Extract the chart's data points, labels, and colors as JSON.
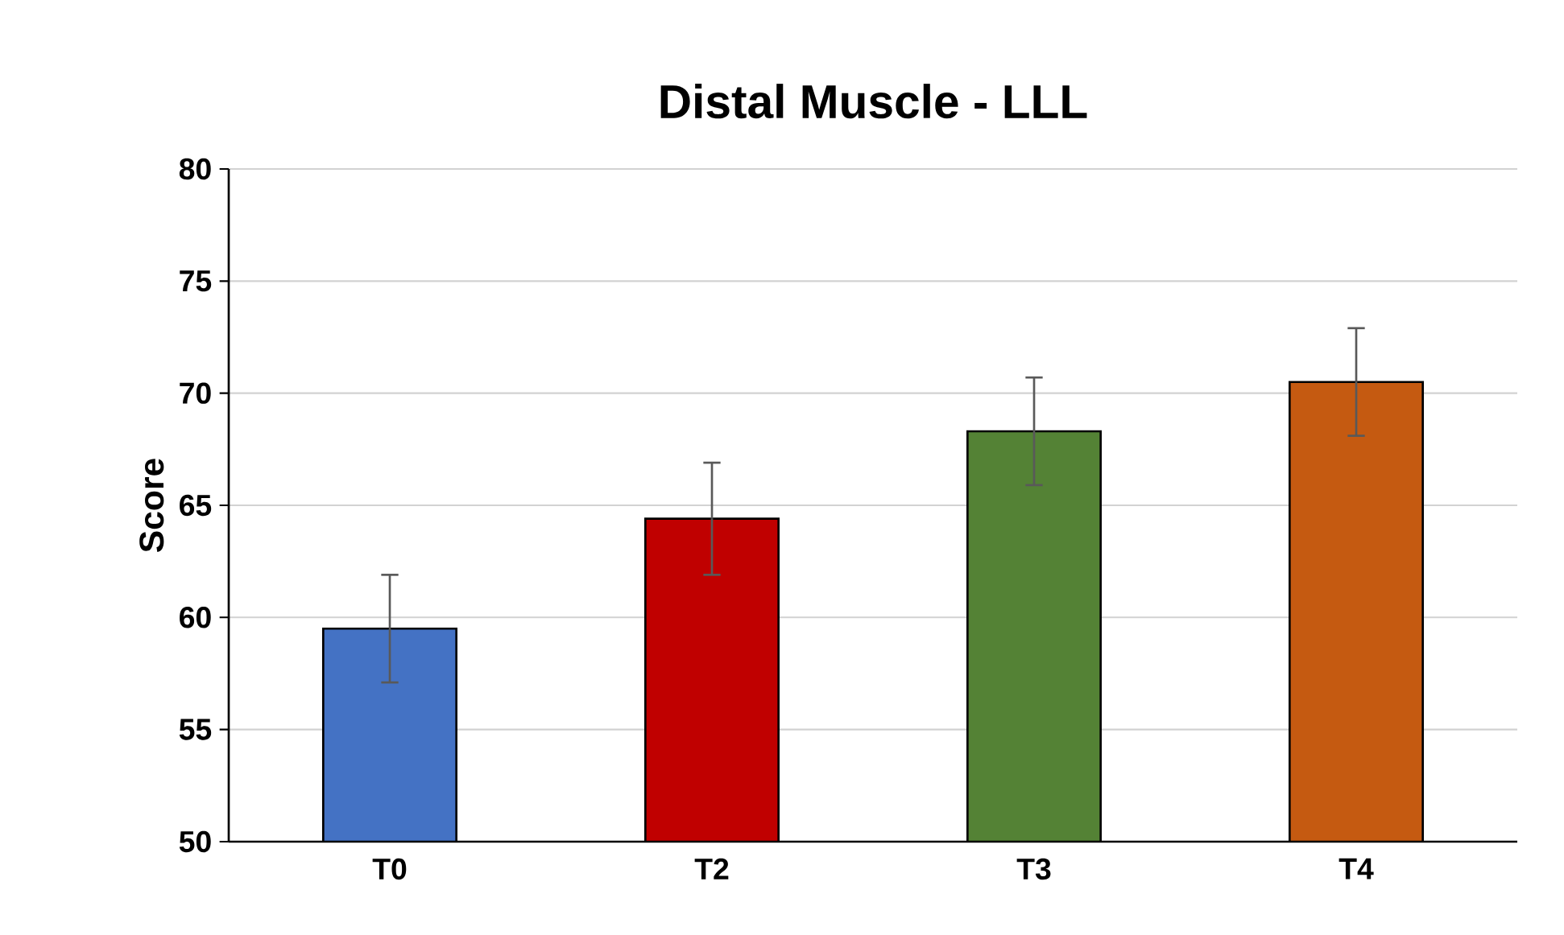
{
  "chart_data": {
    "type": "bar",
    "title": "Distal Muscle - LLL",
    "ylabel": "Score",
    "categories": [
      "T0",
      "T2",
      "T3",
      "T4"
    ],
    "values": [
      59.5,
      64.4,
      68.3,
      70.5
    ],
    "errors": [
      2.4,
      2.5,
      2.4,
      2.4
    ],
    "colors": [
      "#4472c4",
      "#c00000",
      "#548235",
      "#c55a11"
    ],
    "ylim": [
      50,
      80
    ],
    "yticks": [
      50,
      55,
      60,
      65,
      70,
      75,
      80
    ],
    "grid": "y"
  }
}
